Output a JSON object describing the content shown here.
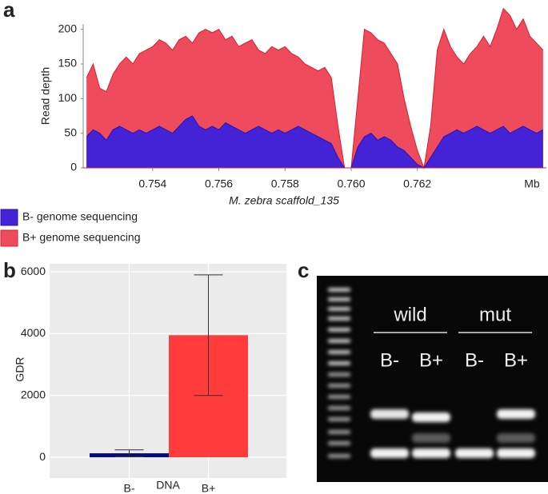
{
  "chart_data": [
    {
      "type": "area",
      "panel": "a",
      "y_label": "Read depth",
      "x_label": "M. zebra scaffold_135",
      "x_unit": "Mb",
      "x": [
        0.752,
        0.7522,
        0.7524,
        0.7526,
        0.7528,
        0.753,
        0.7532,
        0.7534,
        0.7536,
        0.7538,
        0.754,
        0.7542,
        0.7544,
        0.7546,
        0.7548,
        0.755,
        0.7552,
        0.7554,
        0.7556,
        0.7558,
        0.756,
        0.7562,
        0.7564,
        0.7566,
        0.7568,
        0.757,
        0.7572,
        0.7574,
        0.7576,
        0.7578,
        0.758,
        0.7582,
        0.7584,
        0.7586,
        0.7588,
        0.759,
        0.7592,
        0.7594,
        0.7596,
        0.7598,
        0.76,
        0.7602,
        0.7604,
        0.7606,
        0.7608,
        0.761,
        0.7612,
        0.7614,
        0.7616,
        0.7618,
        0.762,
        0.7622,
        0.7624,
        0.7626,
        0.7628,
        0.763,
        0.7632,
        0.7634,
        0.7636,
        0.7638,
        0.764,
        0.7642,
        0.7644,
        0.7646,
        0.7648,
        0.765,
        0.7652,
        0.7654,
        0.7656,
        0.7658
      ],
      "series": [
        {
          "name": "B+ genome sequencing",
          "color": "#ee4c5c",
          "line_color": "#d81e30",
          "values": [
            130,
            150,
            115,
            110,
            135,
            150,
            160,
            150,
            165,
            170,
            175,
            185,
            180,
            170,
            185,
            190,
            180,
            195,
            200,
            195,
            200,
            185,
            190,
            175,
            180,
            185,
            170,
            165,
            175,
            170,
            175,
            165,
            160,
            150,
            145,
            140,
            145,
            130,
            60,
            0,
            0,
            100,
            200,
            195,
            185,
            180,
            165,
            150,
            100,
            60,
            25,
            0,
            60,
            170,
            200,
            175,
            160,
            150,
            165,
            175,
            190,
            175,
            200,
            230,
            220,
            200,
            215,
            190,
            180,
            170
          ]
        },
        {
          "name": "B- genome sequencing",
          "color": "#4422d6",
          "line_color": "#2a14b0",
          "values": [
            45,
            55,
            50,
            40,
            55,
            60,
            55,
            50,
            55,
            50,
            55,
            60,
            55,
            50,
            60,
            70,
            75,
            60,
            55,
            60,
            55,
            65,
            60,
            55,
            50,
            55,
            60,
            55,
            50,
            55,
            50,
            55,
            60,
            55,
            50,
            45,
            40,
            35,
            15,
            0,
            0,
            30,
            45,
            50,
            40,
            45,
            40,
            30,
            25,
            15,
            5,
            0,
            15,
            30,
            45,
            50,
            55,
            50,
            55,
            60,
            55,
            50,
            55,
            60,
            50,
            55,
            60,
            55,
            50,
            55
          ]
        }
      ],
      "legend_order": [
        "B- genome sequencing",
        "B+ genome sequencing"
      ],
      "xlim": [
        0.7519,
        0.7659
      ],
      "xticks": [
        0.754,
        0.756,
        0.758,
        {
          "value": 0.76,
          "label": "0.760"
        },
        0.762
      ],
      "ylim": [
        0,
        240
      ],
      "yticks": [
        0,
        50,
        100,
        150,
        200
      ]
    },
    {
      "type": "bar",
      "panel": "b",
      "y_label": "GDR",
      "x_label": "DNA",
      "categories": [
        "B-",
        "B+"
      ],
      "values": [
        130,
        3950
      ],
      "errors": [
        110,
        1950
      ],
      "colors": [
        "#0a0a78",
        "#ff3b3b"
      ],
      "ylim": [
        -670,
        6260
      ],
      "yticks": [
        0,
        2000,
        4000,
        6000
      ],
      "grid": true
    }
  ],
  "gel": {
    "panel": "c",
    "groups": [
      "wild",
      "mut"
    ],
    "lanes": [
      "B-",
      "B+",
      "B-",
      "B+"
    ]
  }
}
